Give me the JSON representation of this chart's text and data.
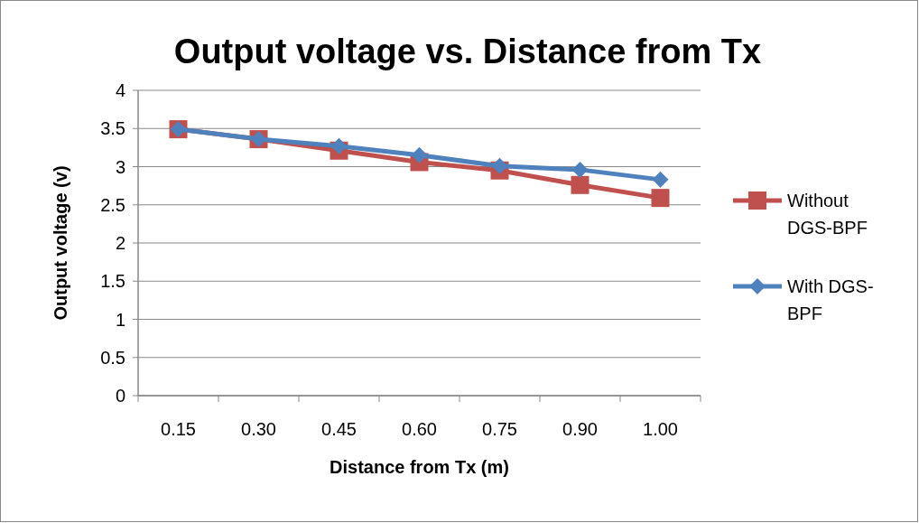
{
  "chart_data": {
    "type": "line",
    "title": "Output voltage vs. Distance from Tx",
    "xlabel": "Distance from Tx (m)",
    "ylabel": "Output voltage (v)",
    "categories": [
      "0.15",
      "0.30",
      "0.45",
      "0.60",
      "0.75",
      "0.90",
      "1.00"
    ],
    "series": [
      {
        "name": "Without DGS-BPF",
        "color": "#c0504d",
        "marker": "square",
        "values": [
          3.49,
          3.36,
          3.21,
          3.06,
          2.95,
          2.76,
          2.59
        ]
      },
      {
        "name": "With DGS-BPF",
        "color": "#4f81bd",
        "marker": "diamond",
        "values": [
          3.49,
          3.36,
          3.27,
          3.15,
          3.01,
          2.96,
          2.83
        ]
      }
    ],
    "ylim": [
      0,
      4
    ],
    "yticks": [
      0,
      0.5,
      1,
      1.5,
      2,
      2.5,
      3,
      3.5,
      4
    ],
    "grid": "y",
    "legend": "right",
    "line_style": "solid"
  }
}
